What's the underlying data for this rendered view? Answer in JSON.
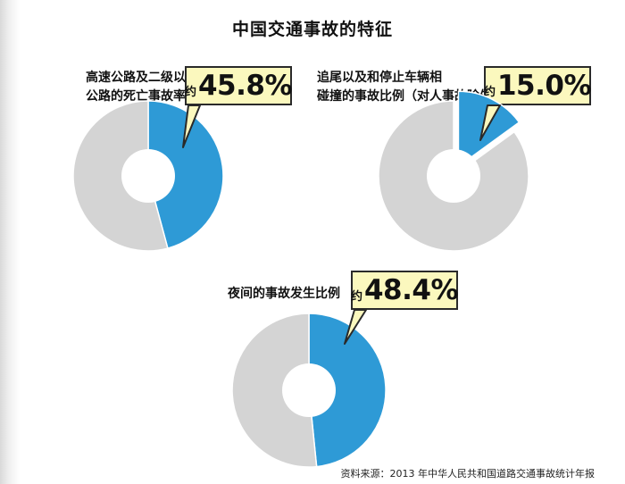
{
  "title": "中国交通事故的特征",
  "colors": {
    "highlight": "#2e9ad6",
    "rest": "#d4d4d4",
    "callout_bg": "#fbf8be",
    "callout_border": "#2a2a2a"
  },
  "chart_data": [
    {
      "type": "pie",
      "label": "高速公路及二级以上公路的死亡事故率",
      "label_lines": [
        "高速公路及二级以上",
        "公路的死亡事故率"
      ],
      "approx_text": "约",
      "value_text": "45.8%",
      "slices": [
        {
          "value": 45.8,
          "color": "#2e9ad6"
        },
        {
          "value": 54.2,
          "color": "#d4d4d4"
        }
      ]
    },
    {
      "type": "pie",
      "label": "追尾以及和停止车辆相碰撞的事故比例（对人事故除外）",
      "label_lines": [
        "追尾以及和停止车辆相",
        "碰撞的事故比例（对人事故除外）"
      ],
      "approx_text": "约",
      "value_text": "15.0%",
      "slices": [
        {
          "value": 15.0,
          "color": "#2e9ad6",
          "exploded": true
        },
        {
          "value": 85.0,
          "color": "#d4d4d4"
        }
      ]
    },
    {
      "type": "pie",
      "label": "夜间的事故发生比例",
      "label_lines": [
        "夜间的事故发生比例"
      ],
      "approx_text": "约",
      "value_text": "48.4%",
      "slices": [
        {
          "value": 48.4,
          "color": "#2e9ad6"
        },
        {
          "value": 51.6,
          "color": "#d4d4d4"
        }
      ]
    }
  ],
  "source": "资料来源：2013 年中华人民共和国道路交通事故统计年报"
}
